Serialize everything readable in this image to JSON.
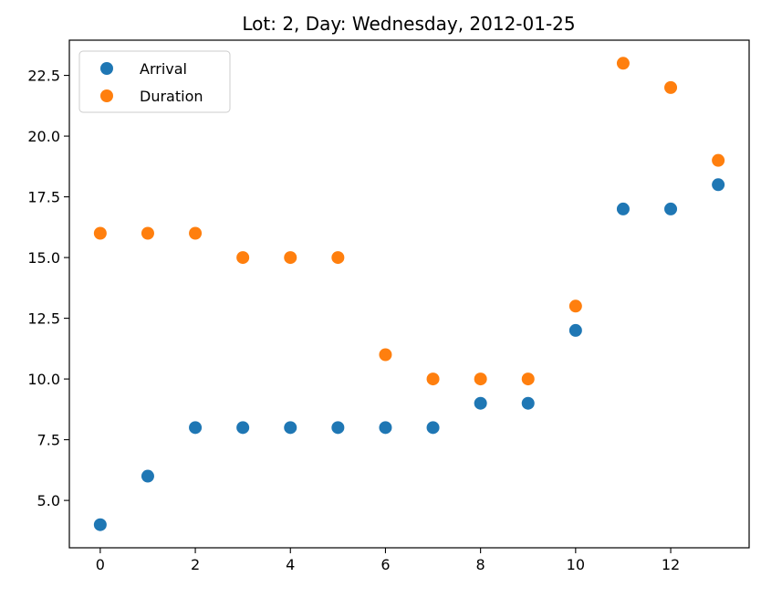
{
  "chart_data": {
    "type": "scatter",
    "title": "Lot: 2, Day: Wednesday, 2012-01-25",
    "xlabel": "",
    "ylabel": "",
    "xlim": [
      -0.65,
      13.65
    ],
    "ylim": [
      3.05,
      23.95
    ],
    "x_ticks": [
      0,
      2,
      4,
      6,
      8,
      10,
      12
    ],
    "x_tick_labels": [
      "0",
      "2",
      "4",
      "6",
      "8",
      "10",
      "12"
    ],
    "y_ticks": [
      5.0,
      7.5,
      10.0,
      12.5,
      15.0,
      17.5,
      20.0,
      22.5
    ],
    "y_tick_labels": [
      "5.0",
      "7.5",
      "10.0",
      "12.5",
      "15.0",
      "17.5",
      "20.0",
      "22.5"
    ],
    "grid": false,
    "legend_position": "top-left",
    "series": [
      {
        "name": "Arrival",
        "color": "#1f77b4",
        "x": [
          0,
          1,
          2,
          3,
          4,
          5,
          6,
          7,
          8,
          9,
          10,
          11,
          12,
          13
        ],
        "y": [
          4,
          6,
          8,
          8,
          8,
          8,
          8,
          8,
          9,
          9,
          12,
          17,
          17,
          18
        ]
      },
      {
        "name": "Duration",
        "color": "#ff7f0e",
        "x": [
          0,
          1,
          2,
          3,
          4,
          5,
          6,
          7,
          8,
          9,
          10,
          11,
          12,
          13
        ],
        "y": [
          16,
          16,
          16,
          15,
          15,
          15,
          11,
          10,
          10,
          10,
          13,
          23,
          22,
          19
        ]
      }
    ]
  }
}
